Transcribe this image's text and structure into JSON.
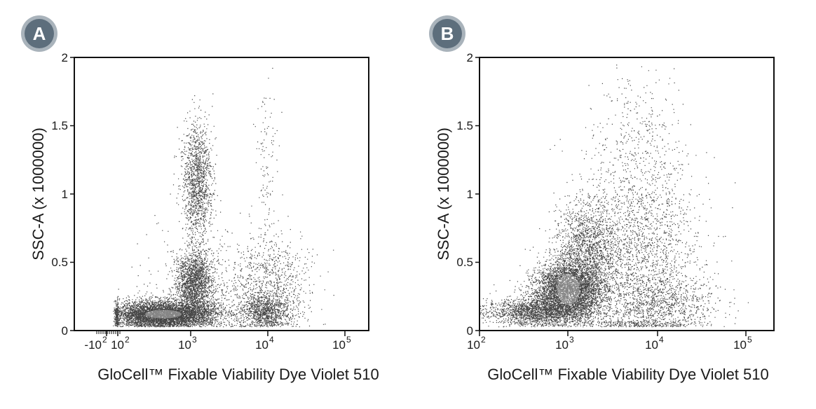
{
  "chart_data": [
    {
      "type": "scatter",
      "panel_label": "A",
      "xlabel": "GloCell™ Fixable Viability Dye Violet 510",
      "ylabel": "SSC-A (x 1000000)",
      "x_scale": "biexponential",
      "xlim": [
        -300,
        200000
      ],
      "ylim": [
        0,
        2
      ],
      "x_ticks": [
        {
          "value": -100,
          "label": "-10",
          "exp": "2"
        },
        {
          "value": 100,
          "label": "10",
          "exp": "2"
        },
        {
          "value": 1000,
          "label": "10",
          "exp": "3"
        },
        {
          "value": 10000,
          "label": "10",
          "exp": "4"
        },
        {
          "value": 100000,
          "label": "10",
          "exp": "5"
        }
      ],
      "y_ticks": [
        {
          "value": 0,
          "label": "0"
        },
        {
          "value": 0.5,
          "label": "0.5"
        },
        {
          "value": 1,
          "label": "1"
        },
        {
          "value": 1.5,
          "label": "1.5"
        },
        {
          "value": 2,
          "label": "2"
        }
      ],
      "grid": false,
      "legend": "none",
      "point_color": "#111111",
      "populations": [
        {
          "x_center": 400,
          "x_spread_decades": 0.35,
          "y_center": 0.12,
          "y_spread": 0.05,
          "n": 5200
        },
        {
          "x_center": 1000,
          "x_spread_decades": 0.12,
          "y_center": 0.35,
          "y_spread": 0.11,
          "n": 1800
        },
        {
          "x_center": 1100,
          "x_spread_decades": 0.1,
          "y_center": 1.08,
          "y_spread": 0.22,
          "n": 1400
        },
        {
          "x_center": 9000,
          "x_spread_decades": 0.18,
          "y_center": 0.14,
          "y_spread": 0.07,
          "n": 1100
        },
        {
          "x_center": 12000,
          "x_spread_decades": 0.22,
          "y_center": 0.38,
          "y_spread": 0.15,
          "n": 500
        },
        {
          "x_center": 9000,
          "x_spread_decades": 0.08,
          "y_center": 1.2,
          "y_spread": 0.35,
          "n": 120
        },
        {
          "x_center": 2500,
          "x_spread_decades": 0.5,
          "y_center": 0.3,
          "y_spread": 0.2,
          "n": 700
        }
      ]
    },
    {
      "type": "scatter",
      "panel_label": "B",
      "xlabel": "GloCell™ Fixable Viability Dye Violet 510",
      "ylabel": "SSC-A (x 1000000)",
      "x_scale": "log",
      "xlim": [
        100,
        200000
      ],
      "ylim": [
        0,
        2
      ],
      "x_ticks": [
        {
          "value": 100,
          "label": "10",
          "exp": "2"
        },
        {
          "value": 1000,
          "label": "10",
          "exp": "3"
        },
        {
          "value": 10000,
          "label": "10",
          "exp": "4"
        },
        {
          "value": 100000,
          "label": "10",
          "exp": "5"
        }
      ],
      "y_ticks": [
        {
          "value": 0,
          "label": "0"
        },
        {
          "value": 0.5,
          "label": "0.5"
        },
        {
          "value": 1,
          "label": "1"
        },
        {
          "value": 1.5,
          "label": "1.5"
        },
        {
          "value": 2,
          "label": "2"
        }
      ],
      "grid": false,
      "legend": "none",
      "point_color": "#111111",
      "populations": [
        {
          "x_center": 1000,
          "x_spread_decades": 0.2,
          "y_center": 0.3,
          "y_spread": 0.1,
          "n": 4200
        },
        {
          "x_center": 500,
          "x_spread_decades": 0.3,
          "y_center": 0.14,
          "y_spread": 0.05,
          "n": 2200
        },
        {
          "x_center": 1600,
          "x_spread_decades": 0.18,
          "y_center": 0.6,
          "y_spread": 0.17,
          "n": 1500
        },
        {
          "x_center": 6000,
          "x_spread_decades": 0.35,
          "y_center": 0.55,
          "y_spread": 0.38,
          "n": 2300
        },
        {
          "x_center": 12000,
          "x_spread_decades": 0.3,
          "y_center": 0.2,
          "y_spread": 0.1,
          "n": 800
        },
        {
          "x_center": 6000,
          "x_spread_decades": 0.25,
          "y_center": 1.4,
          "y_spread": 0.28,
          "n": 300
        }
      ]
    }
  ]
}
